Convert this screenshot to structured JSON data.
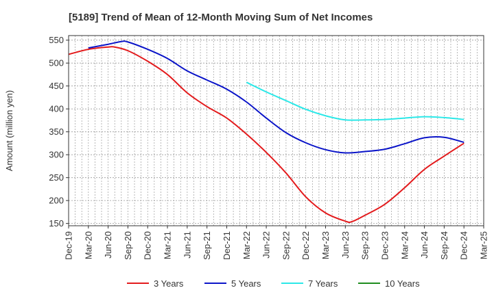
{
  "chart_data": {
    "type": "line",
    "title": "[5189]  Trend of Mean of 12-Month Moving Sum of Net Incomes",
    "ylabel": "Amount (million yen)",
    "xlabel": "",
    "ylim": [
      145,
      560
    ],
    "yticks": [
      150,
      200,
      250,
      300,
      350,
      400,
      450,
      500,
      550
    ],
    "xlim": [
      "2019-12",
      "2025-03"
    ],
    "xticks": [
      "Dec-19",
      "Mar-20",
      "Jun-20",
      "Sep-20",
      "Dec-20",
      "Mar-21",
      "Jun-21",
      "Sep-21",
      "Dec-21",
      "Mar-22",
      "Jun-22",
      "Sep-22",
      "Dec-22",
      "Mar-23",
      "Jun-23",
      "Sep-23",
      "Dec-23",
      "Mar-24",
      "Jun-24",
      "Sep-24",
      "Dec-24",
      "Mar-25"
    ],
    "grid": true,
    "legend_position": "bottom",
    "series": [
      {
        "name": "3 Years",
        "color": "#e31a1c",
        "x": [
          "2019-12",
          "2020-03",
          "2020-06",
          "2020-07",
          "2020-09",
          "2020-12",
          "2021-03",
          "2021-06",
          "2021-09",
          "2021-12",
          "2022-03",
          "2022-06",
          "2022-09",
          "2022-12",
          "2023-03",
          "2023-06",
          "2023-07",
          "2023-09",
          "2023-12",
          "2024-03",
          "2024-06",
          "2024-09",
          "2024-12"
        ],
        "values": [
          519,
          530,
          535,
          535,
          527,
          504,
          475,
          435,
          405,
          380,
          345,
          305,
          260,
          208,
          173,
          155,
          154,
          168,
          192,
          228,
          268,
          297,
          325
        ]
      },
      {
        "name": "5 Years",
        "color": "#0a14c8",
        "x": [
          "2020-03",
          "2020-06",
          "2020-08",
          "2020-09",
          "2020-12",
          "2021-03",
          "2021-06",
          "2021-09",
          "2021-12",
          "2022-03",
          "2022-06",
          "2022-09",
          "2022-12",
          "2023-03",
          "2023-06",
          "2023-09",
          "2023-12",
          "2024-03",
          "2024-06",
          "2024-09",
          "2024-12"
        ],
        "values": [
          533,
          541,
          547,
          546,
          530,
          510,
          483,
          463,
          443,
          415,
          380,
          348,
          326,
          311,
          304,
          307,
          312,
          324,
          337,
          338,
          327
        ]
      },
      {
        "name": "7 Years",
        "color": "#2ae8e8",
        "x": [
          "2022-03",
          "2022-06",
          "2022-09",
          "2022-12",
          "2023-03",
          "2023-06",
          "2023-09",
          "2023-12",
          "2024-03",
          "2024-06",
          "2024-09",
          "2024-12"
        ],
        "values": [
          458,
          437,
          418,
          399,
          385,
          376,
          376,
          377,
          380,
          383,
          381,
          377
        ]
      },
      {
        "name": "10 Years",
        "color": "#1e8c1e",
        "x": [],
        "values": []
      }
    ]
  }
}
